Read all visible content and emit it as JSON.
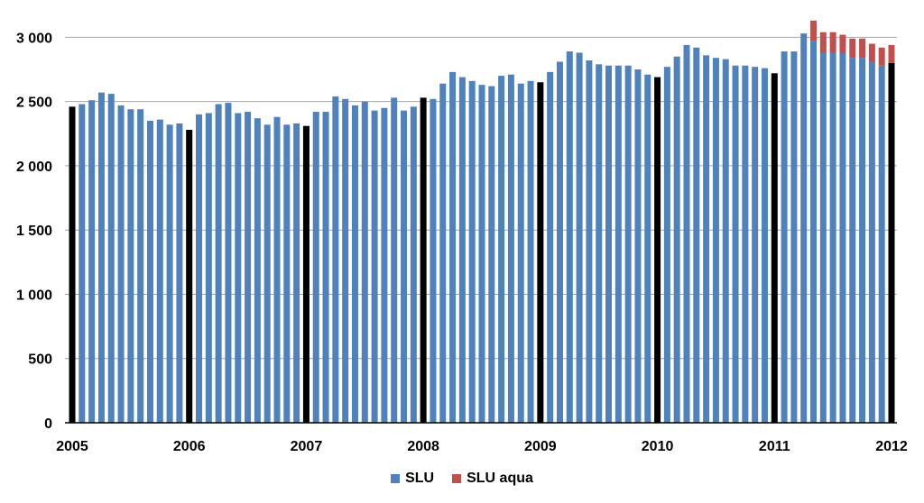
{
  "chart_data": {
    "type": "bar",
    "stacked": true,
    "x_ticks": [
      "2005",
      "2006",
      "2007",
      "2008",
      "2009",
      "2010",
      "2011",
      "2012"
    ],
    "y_ticks": [
      "0",
      "500",
      "1 000",
      "1 500",
      "2 000",
      "2 500",
      "3 000"
    ],
    "ylim": [
      0,
      3150
    ],
    "grid": true,
    "legend_position": "bottom",
    "colors": {
      "SLU": "#4F81BD",
      "SLU aqua": "#C0504D",
      "january": "#000000",
      "grid": "#A6A6A6"
    },
    "series": [
      {
        "name": "SLU",
        "values": [
          2460,
          2480,
          2510,
          2570,
          2560,
          2470,
          2440,
          2440,
          2350,
          2360,
          2320,
          2330,
          2280,
          2400,
          2410,
          2480,
          2490,
          2410,
          2420,
          2370,
          2320,
          2380,
          2320,
          2330,
          2310,
          2420,
          2420,
          2540,
          2520,
          2470,
          2500,
          2430,
          2450,
          2530,
          2430,
          2460,
          2530,
          2520,
          2640,
          2730,
          2690,
          2660,
          2630,
          2620,
          2700,
          2710,
          2640,
          2660,
          2650,
          2730,
          2810,
          2890,
          2880,
          2820,
          2790,
          2780,
          2780,
          2780,
          2750,
          2710,
          2690,
          2770,
          2850,
          2940,
          2920,
          2860,
          2840,
          2830,
          2780,
          2780,
          2770,
          2760,
          2720,
          2890,
          2890,
          3030,
          2970,
          2880,
          2880,
          2880,
          2840,
          2840,
          2810,
          2780,
          2800
        ]
      },
      {
        "name": "SLU aqua",
        "values": [
          0,
          0,
          0,
          0,
          0,
          0,
          0,
          0,
          0,
          0,
          0,
          0,
          0,
          0,
          0,
          0,
          0,
          0,
          0,
          0,
          0,
          0,
          0,
          0,
          0,
          0,
          0,
          0,
          0,
          0,
          0,
          0,
          0,
          0,
          0,
          0,
          0,
          0,
          0,
          0,
          0,
          0,
          0,
          0,
          0,
          0,
          0,
          0,
          0,
          0,
          0,
          0,
          0,
          0,
          0,
          0,
          0,
          0,
          0,
          0,
          0,
          0,
          0,
          0,
          0,
          0,
          0,
          0,
          0,
          0,
          0,
          0,
          0,
          0,
          0,
          0,
          160,
          160,
          160,
          140,
          150,
          150,
          140,
          140,
          140
        ]
      }
    ]
  }
}
